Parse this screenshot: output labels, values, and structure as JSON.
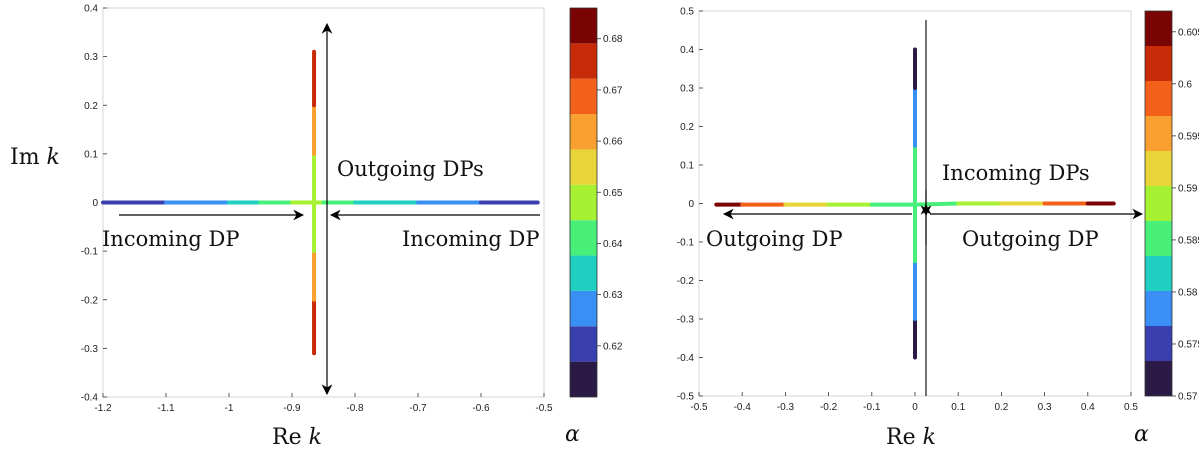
{
  "chart_data": [
    {
      "type": "line",
      "xlabel": "Re k",
      "ylabel": "Im k",
      "xlim": [
        -1.2,
        -0.5
      ],
      "ylim": [
        -0.4,
        0.4
      ],
      "xticks": [
        "-1.2",
        "-1.1",
        "-1",
        "-0.9",
        "-0.8",
        "-0.7",
        "-0.6",
        "-0.5"
      ],
      "yticks": [
        "-0.4",
        "-0.3",
        "-0.2",
        "-0.1",
        "0",
        "0.1",
        "0.2",
        "0.3",
        "0.4"
      ],
      "colorbar": {
        "label": "α",
        "range": [
          0.61,
          0.686
        ],
        "ticks": [
          "0.62",
          "0.63",
          "0.64",
          "0.65",
          "0.66",
          "0.67",
          "0.68"
        ],
        "colors": [
          "#2a1a45",
          "#3a3fb0",
          "#3a8ff5",
          "#1fcfc0",
          "#48f07a",
          "#a6f232",
          "#e8d53a",
          "#f9a030",
          "#f2601a",
          "#c72b08",
          "#7a0403"
        ]
      },
      "series": [
        {
          "x": [
            -1.2,
            -1.1,
            -1.0,
            -0.95,
            -0.9,
            -0.865,
            -0.85,
            -0.8,
            -0.7,
            -0.6,
            -0.51
          ],
          "y": [
            0,
            0,
            0,
            0,
            0,
            0,
            0,
            0,
            0,
            0,
            0
          ],
          "alpha": [
            0.612,
            0.625,
            0.635,
            0.64,
            0.645,
            0.648,
            0.645,
            0.64,
            0.632,
            0.622,
            0.612
          ]
        },
        {
          "x": [
            -0.865,
            -0.865,
            -0.865,
            -0.865,
            -0.865,
            -0.865,
            -0.865
          ],
          "y": [
            -0.31,
            -0.2,
            -0.1,
            0,
            0.1,
            0.2,
            0.31
          ],
          "alpha": [
            0.686,
            0.665,
            0.652,
            0.648,
            0.652,
            0.665,
            0.686
          ]
        }
      ],
      "annotations": {
        "outgoing": "Outgoing DPs",
        "incoming_left": "Incoming DP",
        "incoming_right": "Incoming DP"
      }
    },
    {
      "type": "line",
      "xlabel": "Re k",
      "ylabel": "",
      "xlim": [
        -0.5,
        0.5
      ],
      "ylim": [
        -0.5,
        0.5
      ],
      "xticks": [
        "-0.5",
        "-0.4",
        "-0.3",
        "-0.2",
        "-0.1",
        "0",
        "0.1",
        "0.2",
        "0.3",
        "0.4",
        "0.5"
      ],
      "yticks": [
        "-0.5",
        "-0.4",
        "-0.3",
        "-0.2",
        "-0.1",
        "0",
        "0.1",
        "0.2",
        "0.3",
        "0.4",
        "0.5"
      ],
      "colorbar": {
        "label": "α",
        "range": [
          0.57,
          0.607
        ],
        "ticks": [
          "0.57",
          "0.575",
          "0.58",
          "0.585",
          "0.59",
          "0.595",
          "0.6",
          "0.605"
        ],
        "colors": [
          "#2a1a45",
          "#3a3fb0",
          "#3a8ff5",
          "#1fcfc0",
          "#48f07a",
          "#a6f232",
          "#e8d53a",
          "#f9a030",
          "#f2601a",
          "#c72b08",
          "#7a0403"
        ]
      },
      "series": [
        {
          "x": [
            -0.46,
            -0.4,
            -0.3,
            -0.2,
            -0.1,
            0,
            0.1,
            0.2,
            0.3,
            0.4,
            0.46
          ],
          "y": [
            -0.003,
            -0.003,
            -0.003,
            -0.003,
            -0.003,
            -0.003,
            0.0,
            0.0,
            0.0,
            0.0,
            0.0
          ],
          "alpha": [
            0.606,
            0.602,
            0.596,
            0.59,
            0.587,
            0.586,
            0.587,
            0.59,
            0.596,
            0.602,
            0.606
          ]
        },
        {
          "x": [
            0,
            0,
            0,
            0,
            0,
            0,
            0
          ],
          "y": [
            -0.4,
            -0.3,
            -0.15,
            0,
            0.15,
            0.3,
            0.4
          ],
          "alpha": [
            0.57,
            0.576,
            0.582,
            0.586,
            0.582,
            0.576,
            0.57
          ]
        }
      ],
      "annotations": {
        "incoming": "Incoming DPs",
        "outgoing_left": "Outgoing DP",
        "outgoing_right": "Outgoing DP"
      }
    }
  ]
}
